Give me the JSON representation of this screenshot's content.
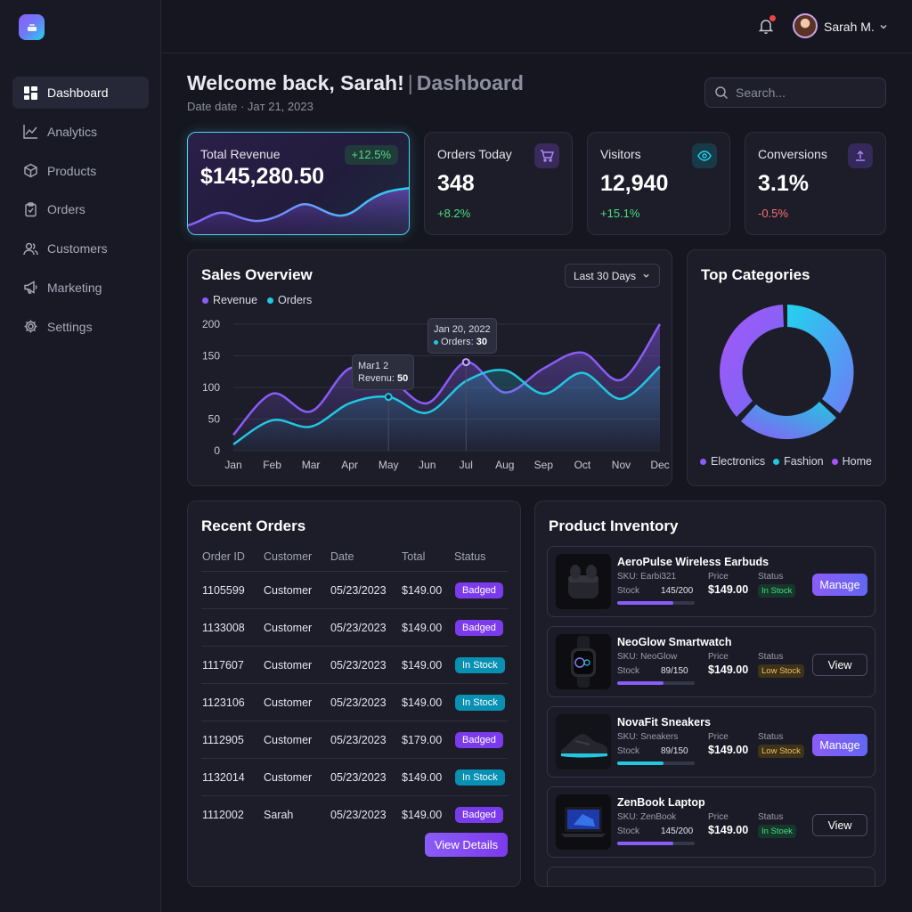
{
  "sidebar": {
    "items": [
      {
        "label": "Dashboard",
        "icon": "grid-icon",
        "active": true
      },
      {
        "label": "Analytics",
        "icon": "line-chart-icon"
      },
      {
        "label": "Products",
        "icon": "box-icon"
      },
      {
        "label": "Orders",
        "icon": "clipboard-icon"
      },
      {
        "label": "Customers",
        "icon": "users-icon"
      },
      {
        "label": "Marketing",
        "icon": "megaphone-icon"
      },
      {
        "label": "Settings",
        "icon": "gear-icon"
      }
    ]
  },
  "header": {
    "user_name": "Sarah M.",
    "title": "Welcome back, Sarah!",
    "separator": "|",
    "section": "Dashboard",
    "date": "Date date · Jaт 21, 2023",
    "search_placeholder": "Search..."
  },
  "stats": {
    "revenue": {
      "label": "Total Revenue",
      "value": "$145,280.50",
      "change": "+12.5%"
    },
    "orders": {
      "label": "Orders Today",
      "value": "348",
      "change": "+8.2%"
    },
    "visitors": {
      "label": "Visitors",
      "value": "12,940",
      "change": "+15.1%"
    },
    "conversions": {
      "label": "Conversions",
      "value": "3.1%",
      "change": "-0.5%"
    }
  },
  "sales": {
    "title": "Sales Overview",
    "range": "Last 30 Days",
    "tooltip1": {
      "title": "Mar1 2",
      "label": "Revenu:",
      "value": "50"
    },
    "tooltip2": {
      "title": "Jan 20, 2022",
      "label": "Orders:",
      "value": "30"
    }
  },
  "chart_data": {
    "type": "line",
    "categories": [
      "Jan",
      "Feb",
      "Mar",
      "Apr",
      "May",
      "Jun",
      "Jul",
      "Aug",
      "Sep",
      "Oct",
      "Nov",
      "Dec"
    ],
    "series": [
      {
        "name": "Revenue",
        "color": "#8b5cf6",
        "values": [
          25,
          90,
          62,
          130,
          115,
          75,
          140,
          92,
          130,
          155,
          112,
          200
        ]
      },
      {
        "name": "Orders",
        "color": "#22c7e0",
        "values": [
          10,
          48,
          38,
          75,
          85,
          60,
          110,
          127,
          90,
          123,
          82,
          133
        ]
      }
    ],
    "ylim": [
      0,
      200
    ],
    "yticks": [
      "0",
      "50",
      "100",
      "150",
      "200"
    ],
    "grid": true,
    "legend": "top-left"
  },
  "categories": {
    "title": "Top Categories",
    "legend": [
      {
        "label": "Electronics",
        "color": "#8b5cf6"
      },
      {
        "label": "Fashion",
        "color": "#22c7e0"
      },
      {
        "label": "Home",
        "color": "#a855f7"
      }
    ]
  },
  "recent_orders": {
    "title": "Recent Orders",
    "columns": [
      "Order ID",
      "Customer",
      "Date",
      "Total",
      "Status"
    ],
    "rows": [
      {
        "id": "1105599",
        "customer": "Customer",
        "date": "05/23/2023",
        "total": "$149.00",
        "status": "Badged",
        "tone": "purple"
      },
      {
        "id": "1133008",
        "customer": "Customer",
        "date": "05/23/2023",
        "total": "$149.00",
        "status": "Badged",
        "tone": "purple"
      },
      {
        "id": "1117607",
        "customer": "Customer",
        "date": "05/23/2023",
        "total": "$149.00",
        "status": "In Stock",
        "tone": "cyan"
      },
      {
        "id": "1123106",
        "customer": "Customer",
        "date": "05/23/2023",
        "total": "$149.00",
        "status": "In Stock",
        "tone": "cyan"
      },
      {
        "id": "1112905",
        "customer": "Customer",
        "date": "05/23/2023",
        "total": "$179.00",
        "status": "Badged",
        "tone": "purple"
      },
      {
        "id": "1132014",
        "customer": "Customer",
        "date": "05/23/2023",
        "total": "$149.00",
        "status": "In Stock",
        "tone": "cyan"
      },
      {
        "id": "1112002",
        "customer": "Sarah",
        "date": "05/23/2023",
        "total": "$149.00",
        "status": "Badged",
        "tone": "purple"
      }
    ],
    "button": "View Details"
  },
  "inventory": {
    "title": "Product Inventory",
    "stock_label": "Stock",
    "price_label": "Price",
    "status_label": "Status",
    "products": [
      {
        "name": "AeroPulse Wireless Earbuds",
        "sku": "SKU: Earbi321",
        "stock": "145/200",
        "stock_fraction": 0.725,
        "price": "$149.00",
        "status": "In Stock",
        "tone": "green",
        "action": "Manage",
        "bar": "#8b5cf6",
        "img": "earbuds"
      },
      {
        "name": "NeoGlow Smartwatch",
        "sku": "SKU: NeoGlow",
        "stock": "89/150",
        "stock_fraction": 0.593,
        "price": "$149.00",
        "status": "Low Stock",
        "tone": "amber",
        "action": "View",
        "bar": "#8b5cf6",
        "img": "watch"
      },
      {
        "name": "NovaFit Sneakers",
        "sku": "SKU: Sneakers",
        "stock": "89/150",
        "stock_fraction": 0.593,
        "price": "$149.00",
        "status": "Low Stock",
        "tone": "amber",
        "action": "Manage",
        "bar": "#22c7e0",
        "img": "sneaker"
      },
      {
        "name": "ZenBook Laptop",
        "sku": "SKU: ZenBook",
        "stock": "145/200",
        "stock_fraction": 0.725,
        "price": "$149.00",
        "status": "In Stoek",
        "tone": "green",
        "action": "View",
        "bar": "#8b5cf6",
        "img": "laptop"
      }
    ]
  }
}
